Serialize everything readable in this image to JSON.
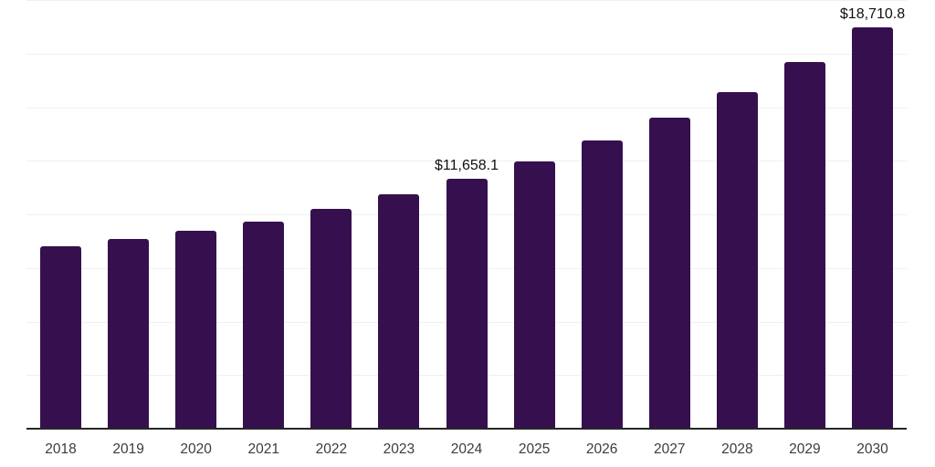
{
  "chart_data": {
    "type": "bar",
    "title": "",
    "xlabel": "",
    "ylabel": "",
    "categories": [
      "2018",
      "2019",
      "2020",
      "2021",
      "2022",
      "2023",
      "2024",
      "2025",
      "2026",
      "2027",
      "2028",
      "2029",
      "2030"
    ],
    "values": [
      8500,
      8850,
      9230,
      9660,
      10260,
      10940,
      11658.1,
      12470,
      13450,
      14510,
      15700,
      17100,
      18710.8
    ],
    "bar_labels": [
      "",
      "",
      "",
      "",
      "",
      "",
      "$11,658.1",
      "",
      "",
      "",
      "",
      "",
      "$18,710.8"
    ],
    "ylim": [
      0,
      20000
    ],
    "gridline_interval": 2500,
    "grid": "horizontal",
    "legend": "none",
    "bar_color": "#36104E"
  },
  "colors": {
    "background": "#ffffff",
    "bar": "#36104E",
    "gridline": "#f0f0f1",
    "axis_line": "#262626",
    "x_label": "#3c3c3c",
    "value_label": "#101010"
  }
}
